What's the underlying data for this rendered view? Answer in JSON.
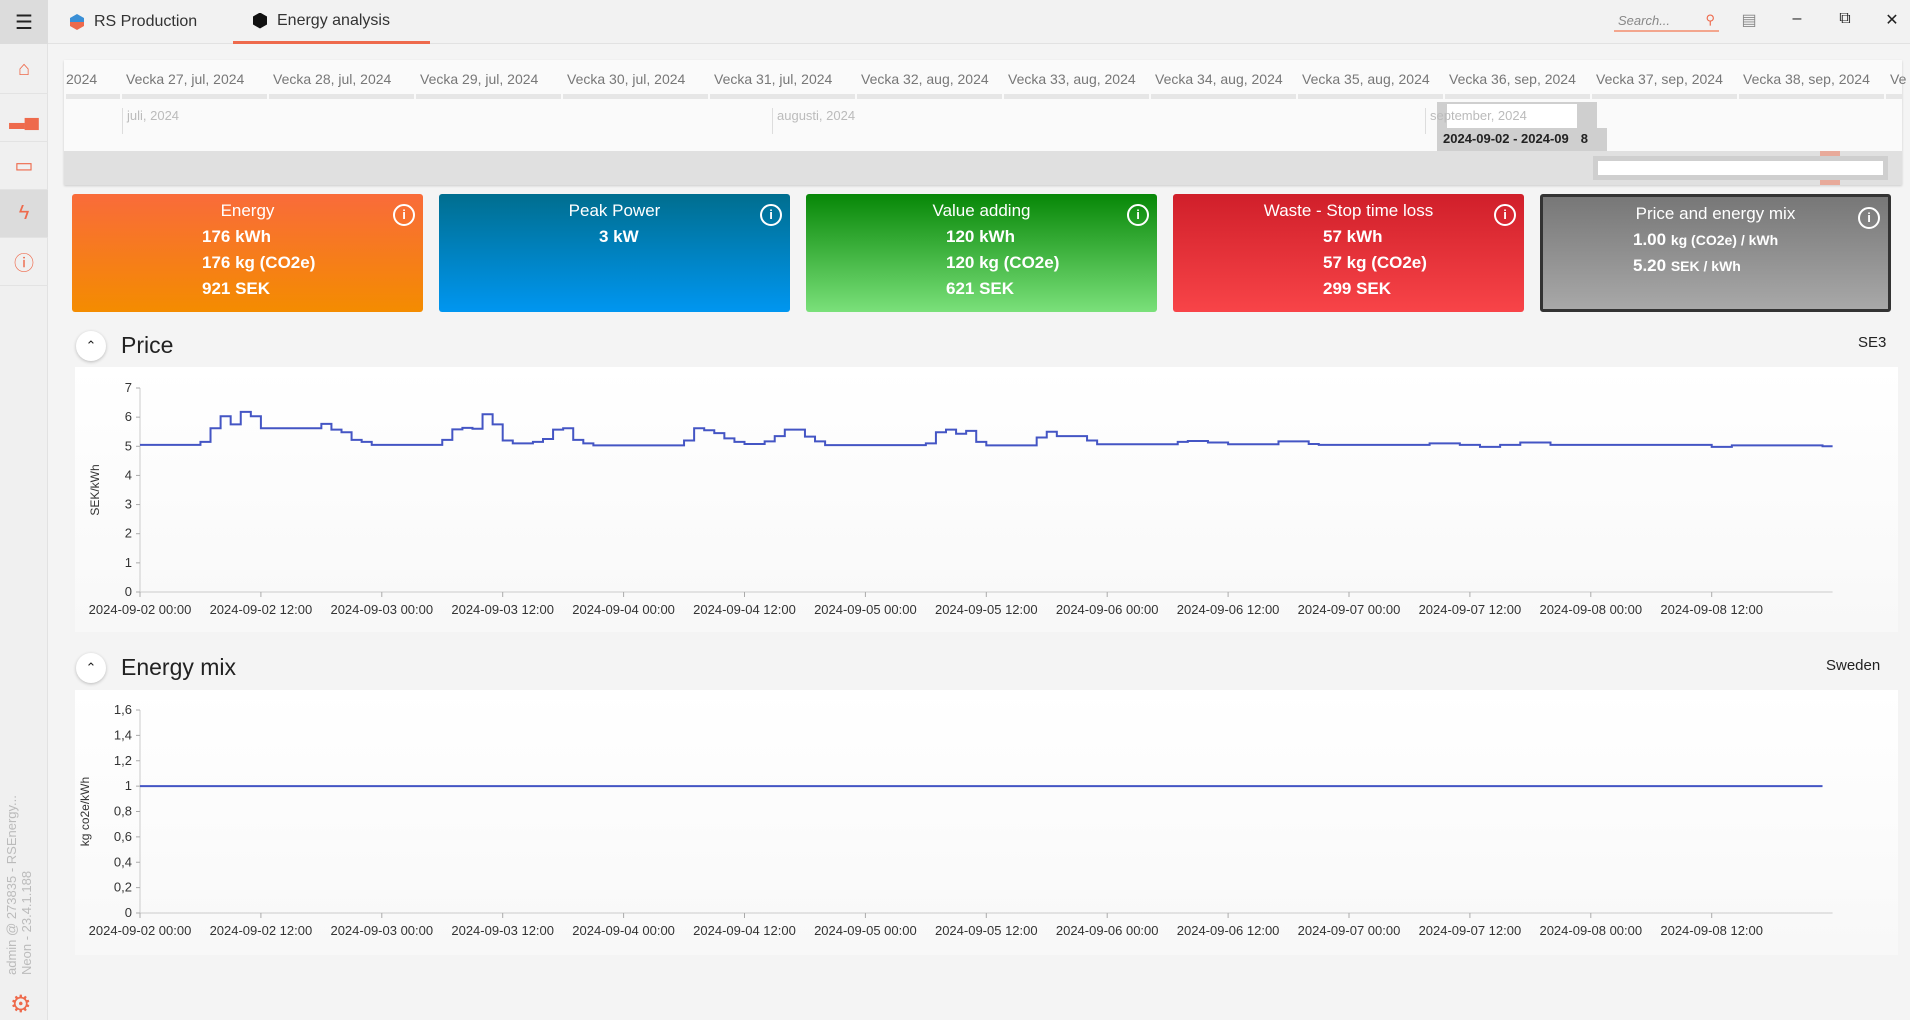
{
  "topbar": {
    "tabs": [
      {
        "label": "RS Production",
        "icon": "rs-logo-icon"
      },
      {
        "label": "Energy analysis",
        "icon": "energy-hex-icon",
        "active": true
      }
    ],
    "search_placeholder": "Search...",
    "accent": "#ee6a4c"
  },
  "sidebar": {
    "items": [
      "home",
      "statistics",
      "monitor",
      "energy",
      "help"
    ],
    "selected": "energy",
    "user_text": "admin @ 273835 - RSEnergy...",
    "version_text": "Neon - 23.4.1.188"
  },
  "timeline": {
    "weeks": [
      "2024",
      "Vecka 27, jul, 2024",
      "Vecka 28, jul, 2024",
      "Vecka 29, jul, 2024",
      "Vecka 30, jul, 2024",
      "Vecka 31, jul, 2024",
      "Vecka 32, aug, 2024",
      "Vecka 33, aug, 2024",
      "Vecka 34, aug, 2024",
      "Vecka 35, aug, 2024",
      "Vecka 36, sep, 2024",
      "Vecka 37, sep, 2024",
      "Vecka 38, sep, 2024",
      "Ve"
    ],
    "months": [
      "juli, 2024",
      "augusti, 2024",
      "september, 2024"
    ],
    "range_label": "2024-09-02 - 2024-09",
    "range_suffix": "8"
  },
  "cards": [
    {
      "title": "Energy",
      "lines": [
        "176 kWh",
        "176 kg (CO2e)",
        "921 SEK"
      ],
      "colors": [
        "#f96b3a",
        "#f48c00"
      ]
    },
    {
      "title": "Peak Power",
      "lines": [
        "3 kW"
      ],
      "colors": [
        "#006e8f",
        "#0096f0"
      ]
    },
    {
      "title": "Value adding",
      "lines": [
        "120 kWh",
        "120 kg (CO2e)",
        "621 SEK"
      ],
      "colors": [
        "#078707",
        "#7ae07a"
      ]
    },
    {
      "title": "Waste - Stop time loss",
      "lines": [
        "57 kWh",
        "57 kg (CO2e)",
        "299 SEK"
      ],
      "colors": [
        "#d01f2a",
        "#f84448"
      ]
    },
    {
      "title": "Price and energy mix",
      "lines": [
        [
          "1.00",
          "kg (CO2e) / kWh"
        ],
        [
          "5.20",
          "SEK  / kWh"
        ]
      ],
      "colors": [
        "#777777",
        "#a8a8a8"
      ]
    }
  ],
  "price": {
    "title": "Price",
    "region": "SE3"
  },
  "energy_mix": {
    "title": "Energy mix",
    "region": "Sweden"
  },
  "chart_data": [
    {
      "type": "line",
      "step": true,
      "ylabel": "SEK/kWh",
      "ylim": [
        0,
        7
      ],
      "yticks": [
        "0",
        "1",
        "2",
        "3",
        "4",
        "5",
        "6",
        "7"
      ],
      "line_color": "#4455c4",
      "xticks": [
        "2024-09-02 00:00",
        "2024-09-02 12:00",
        "2024-09-03 00:00",
        "2024-09-03 12:00",
        "2024-09-04 00:00",
        "2024-09-04 12:00",
        "2024-09-05 00:00",
        "2024-09-05 12:00",
        "2024-09-06 00:00",
        "2024-09-06 12:00",
        "2024-09-07 00:00",
        "2024-09-07 12:00",
        "2024-09-08 00:00",
        "2024-09-08 12:00"
      ],
      "points": [
        [
          "2024-09-02 00:00",
          5.05
        ],
        [
          "2024-09-02 06:00",
          5.15
        ],
        [
          "2024-09-02 07:00",
          5.62
        ],
        [
          "2024-09-02 08:00",
          6.03
        ],
        [
          "2024-09-02 09:00",
          5.75
        ],
        [
          "2024-09-02 10:00",
          6.18
        ],
        [
          "2024-09-02 11:00",
          6.03
        ],
        [
          "2024-09-02 12:00",
          5.62
        ],
        [
          "2024-09-02 18:00",
          5.77
        ],
        [
          "2024-09-02 19:00",
          5.57
        ],
        [
          "2024-09-02 20:00",
          5.48
        ],
        [
          "2024-09-02 21:00",
          5.22
        ],
        [
          "2024-09-02 22:00",
          5.15
        ],
        [
          "2024-09-02 23:00",
          5.05
        ],
        [
          "2024-09-03 06:00",
          5.22
        ],
        [
          "2024-09-03 07:00",
          5.58
        ],
        [
          "2024-09-03 08:00",
          5.63
        ],
        [
          "2024-09-03 09:00",
          5.6
        ],
        [
          "2024-09-03 10:00",
          6.1
        ],
        [
          "2024-09-03 11:00",
          5.75
        ],
        [
          "2024-09-03 12:00",
          5.2
        ],
        [
          "2024-09-03 13:00",
          5.1
        ],
        [
          "2024-09-03 15:00",
          5.15
        ],
        [
          "2024-09-03 16:00",
          5.25
        ],
        [
          "2024-09-03 17:00",
          5.57
        ],
        [
          "2024-09-03 18:00",
          5.62
        ],
        [
          "2024-09-03 19:00",
          5.22
        ],
        [
          "2024-09-03 20:00",
          5.1
        ],
        [
          "2024-09-03 21:00",
          5.03
        ],
        [
          "2024-09-04 06:00",
          5.2
        ],
        [
          "2024-09-04 07:00",
          5.62
        ],
        [
          "2024-09-04 08:00",
          5.55
        ],
        [
          "2024-09-04 09:00",
          5.45
        ],
        [
          "2024-09-04 10:00",
          5.27
        ],
        [
          "2024-09-04 11:00",
          5.15
        ],
        [
          "2024-09-04 12:00",
          5.08
        ],
        [
          "2024-09-04 14:00",
          5.17
        ],
        [
          "2024-09-04 15:00",
          5.35
        ],
        [
          "2024-09-04 16:00",
          5.57
        ],
        [
          "2024-09-04 18:00",
          5.33
        ],
        [
          "2024-09-04 19:00",
          5.17
        ],
        [
          "2024-09-04 20:00",
          5.04
        ],
        [
          "2024-09-05 06:00",
          5.1
        ],
        [
          "2024-09-05 07:00",
          5.48
        ],
        [
          "2024-09-05 08:00",
          5.57
        ],
        [
          "2024-09-05 09:00",
          5.43
        ],
        [
          "2024-09-05 10:00",
          5.53
        ],
        [
          "2024-09-05 11:00",
          5.15
        ],
        [
          "2024-09-05 12:00",
          5.03
        ],
        [
          "2024-09-05 17:00",
          5.3
        ],
        [
          "2024-09-05 18:00",
          5.5
        ],
        [
          "2024-09-05 19:00",
          5.35
        ],
        [
          "2024-09-05 22:00",
          5.2
        ],
        [
          "2024-09-05 23:00",
          5.07
        ],
        [
          "2024-09-06 07:00",
          5.15
        ],
        [
          "2024-09-06 08:00",
          5.18
        ],
        [
          "2024-09-06 10:00",
          5.13
        ],
        [
          "2024-09-06 12:00",
          5.07
        ],
        [
          "2024-09-06 17:00",
          5.17
        ],
        [
          "2024-09-06 20:00",
          5.08
        ],
        [
          "2024-09-06 21:00",
          5.05
        ],
        [
          "2024-09-07 08:00",
          5.1
        ],
        [
          "2024-09-07 11:00",
          5.05
        ],
        [
          "2024-09-07 13:00",
          4.98
        ],
        [
          "2024-09-07 15:00",
          5.05
        ],
        [
          "2024-09-07 17:00",
          5.13
        ],
        [
          "2024-09-07 20:00",
          5.05
        ],
        [
          "2024-09-08 12:00",
          4.98
        ],
        [
          "2024-09-08 14:00",
          5.03
        ],
        [
          "2024-09-08 23:00",
          5.0
        ]
      ]
    },
    {
      "type": "line",
      "ylabel": "kg co2e/kWh",
      "ylim": [
        0,
        1.6
      ],
      "yticks": [
        "0",
        "0,2",
        "0,4",
        "0,6",
        "0,8",
        "1",
        "1,2",
        "1,4",
        "1,6"
      ],
      "line_color": "#4455c4",
      "xticks": [
        "2024-09-02 00:00",
        "2024-09-02 12:00",
        "2024-09-03 00:00",
        "2024-09-03 12:00",
        "2024-09-04 00:00",
        "2024-09-04 12:00",
        "2024-09-05 00:00",
        "2024-09-05 12:00",
        "2024-09-06 00:00",
        "2024-09-06 12:00",
        "2024-09-07 00:00",
        "2024-09-07 12:00",
        "2024-09-08 00:00",
        "2024-09-08 12:00"
      ],
      "points": [
        [
          "2024-09-02 00:00",
          1
        ],
        [
          "2024-09-08 23:00",
          1
        ]
      ]
    }
  ]
}
